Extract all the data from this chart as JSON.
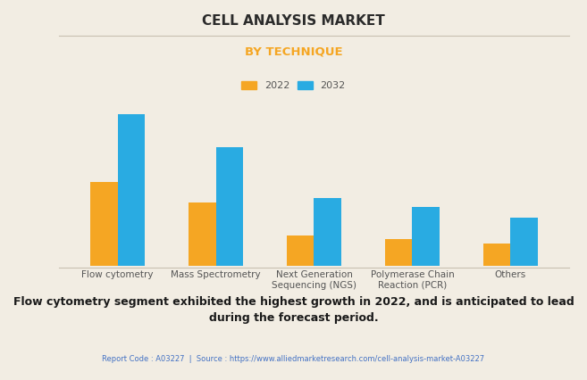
{
  "title": "CELL ANALYSIS MARKET",
  "subtitle": "BY TECHNIQUE",
  "categories": [
    "Flow cytometry",
    "Mass Spectrometry",
    "Next Generation\nSequencing (NGS)",
    "Polymerase Chain\nReaction (PCR)",
    "Others"
  ],
  "values_2022": [
    5.5,
    4.2,
    2.0,
    1.8,
    1.5
  ],
  "values_2032": [
    10.0,
    7.8,
    4.5,
    3.9,
    3.2
  ],
  "color_2022": "#F5A623",
  "color_2032": "#29ABE2",
  "legend_labels": [
    "2022",
    "2032"
  ],
  "background_color": "#F2EDE3",
  "title_color": "#2B2B2B",
  "subtitle_color": "#F5A623",
  "grid_color": "#D8D0C0",
  "annotation": "Flow cytometry segment exhibited the highest growth in 2022, and is anticipated to lead\nduring the forecast period.",
  "source_text": "Report Code : A03227  |  Source : https://www.alliedmarketresearch.com/cell-analysis-market-A03227",
  "ylim": [
    0,
    11
  ],
  "bar_width": 0.28,
  "title_fontsize": 11,
  "subtitle_fontsize": 9.5,
  "legend_fontsize": 8,
  "xtick_fontsize": 7.5,
  "annotation_fontsize": 9,
  "source_fontsize": 6
}
